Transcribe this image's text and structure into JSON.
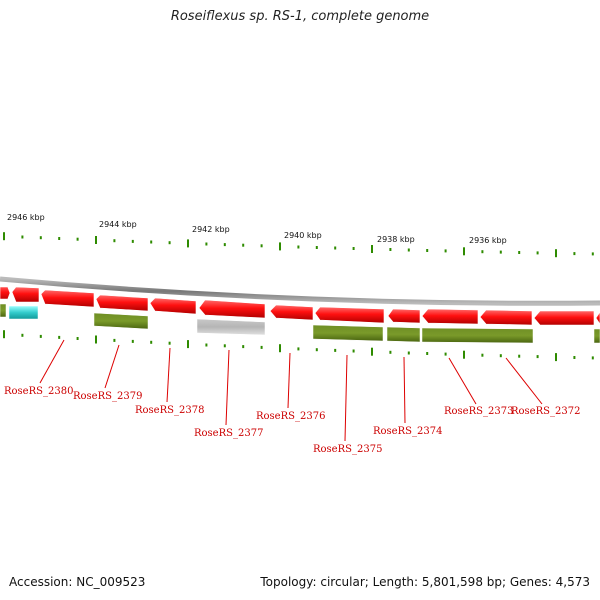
{
  "title": "Roseiflexus sp. RS-1, complete genome",
  "footer": {
    "accession": "Accession: NC_009523",
    "summary": "Topology: circular; Length: 5,801,598 bp; Genes: 4,573"
  },
  "colors": {
    "forward_gene": "#ee0000",
    "cds": "#6b8e23",
    "rna": "#33cccc",
    "pseudo": "#b8b8b8",
    "backbone": "#999999",
    "tick": "#2e8b00",
    "label": "#cc0000"
  },
  "scale_labels": [
    "2946 kbp",
    "2944 kbp",
    "2942 kbp",
    "2940 kbp",
    "2938 kbp",
    "2936 kbp"
  ],
  "gene_labels": [
    "RoseRS_2380",
    "RoseRS_2379",
    "RoseRS_2378",
    "RoseRS_2377",
    "RoseRS_2376",
    "RoseRS_2375",
    "RoseRS_2374",
    "RoseRS_2373",
    "RoseRS_2372"
  ]
}
